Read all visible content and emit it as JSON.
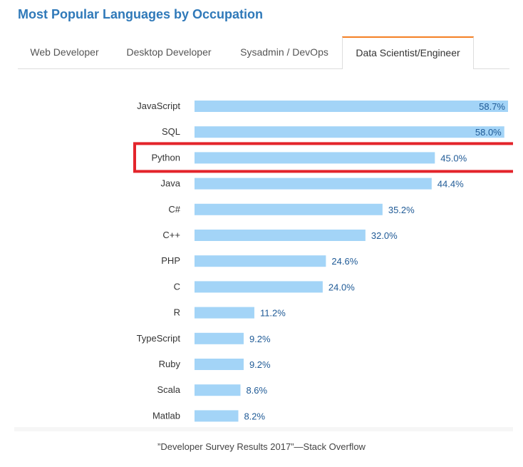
{
  "header": {
    "title": "Most Popular Languages by Occupation"
  },
  "tabs": [
    {
      "label": "Web Developer",
      "active": false
    },
    {
      "label": "Desktop Developer",
      "active": false
    },
    {
      "label": "Sysadmin / DevOps",
      "active": false
    },
    {
      "label": "Data Scientist/Engineer",
      "active": true
    }
  ],
  "colors": {
    "title": "#2F79B9",
    "bar": "#A3D4F7",
    "value_label": "#1F5A96",
    "active_tab_accent": "#F48024",
    "highlight_box": "#E3242B"
  },
  "chart_data": {
    "type": "bar",
    "orientation": "horizontal",
    "categories": [
      "JavaScript",
      "SQL",
      "Python",
      "Java",
      "C#",
      "C++",
      "PHP",
      "C",
      "R",
      "TypeScript",
      "Ruby",
      "Scala",
      "Matlab"
    ],
    "values": [
      58.7,
      58.0,
      45.0,
      44.4,
      35.2,
      32.0,
      24.6,
      24.0,
      11.2,
      9.2,
      9.2,
      8.6,
      8.2
    ],
    "value_labels": [
      "58.7%",
      "58.0%",
      "45.0%",
      "44.4%",
      "35.2%",
      "32.0%",
      "24.6%",
      "24.0%",
      "11.2%",
      "9.2%",
      "9.2%",
      "8.6%",
      "8.2%"
    ],
    "highlighted_category": "Python",
    "xlim": [
      0,
      58.7
    ],
    "grid": false,
    "legend": "none"
  },
  "caption": "”Developer Survey Results 2017”—Stack Overflow"
}
